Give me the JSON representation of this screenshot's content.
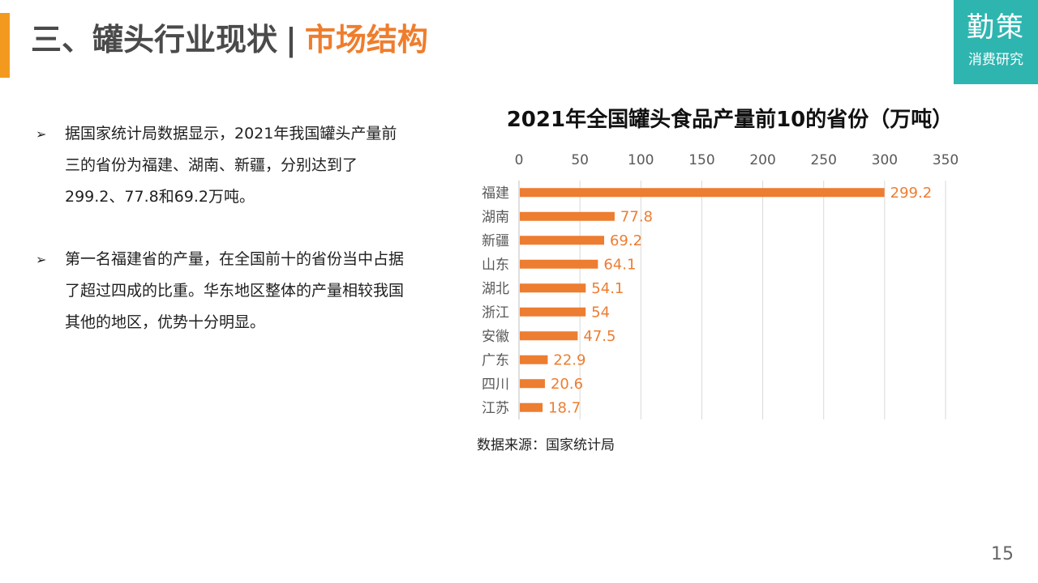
{
  "header": {
    "title_main": "三、罐头行业现状",
    "separator": "|",
    "title_sub": "市场结构",
    "accent_color": "#f39a1e",
    "sub_color": "#ef7d2c"
  },
  "logo": {
    "name": "勤策",
    "tagline": "消费研究",
    "color": "#2fb5b0"
  },
  "bullets": [
    {
      "marker": "➢",
      "text": "据国家统计局数据显示，2021年我国罐头产量前三的省份为福建、湖南、新疆，分别达到了299.2、77.8和69.2万吨。"
    },
    {
      "marker": "➢",
      "text": "第一名福建省的产量，在全国前十的省份当中占据了超过四成的比重。华东地区整体的产量相较我国其他的地区，优势十分明显。"
    }
  ],
  "chart_data": {
    "type": "bar",
    "orientation": "horizontal",
    "title": "2021年全国罐头食品产量前10的省份（万吨）",
    "categories": [
      "福建",
      "湖南",
      "新疆",
      "山东",
      "湖北",
      "浙江",
      "安徽",
      "广东",
      "四川",
      "江苏"
    ],
    "values": [
      299.2,
      77.8,
      69.2,
      64.1,
      54.1,
      54,
      47.5,
      22.9,
      20.6,
      18.7
    ],
    "value_labels": [
      "299.2",
      "77.8",
      "69.2",
      "64.1",
      "54.1",
      "54",
      "47.5",
      "22.9",
      "20.6",
      "18.7"
    ],
    "xlim": [
      0,
      350
    ],
    "xticks": [
      "0",
      "50",
      "100",
      "150",
      "200",
      "250",
      "300",
      "350"
    ],
    "x_axis_position": "top",
    "grid": true,
    "bar_color": "#ed7d31",
    "label_color": "#ed7d31",
    "source": "数据来源：国家统计局"
  },
  "page_number": "15"
}
